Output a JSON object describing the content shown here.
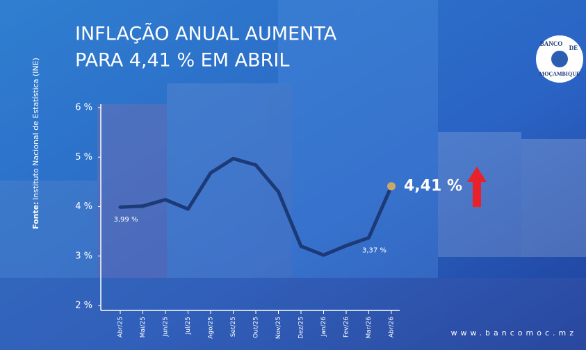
{
  "chart_data": {
    "type": "line",
    "title": [
      "INFLAÇÃO ANUAL AUMENTA",
      "PARA 4,41 % EM ABRIL"
    ],
    "categories": [
      "Abr/25",
      "Mai/25",
      "Jun/25",
      "Jul/25",
      "Ago/25",
      "Set/25",
      "Out/25",
      "Nov/25",
      "Dez/25",
      "Jan/26",
      "Fev/26",
      "Mar/26",
      "Abr/26"
    ],
    "values": [
      3.99,
      4.01,
      4.14,
      3.95,
      4.68,
      4.97,
      4.84,
      4.3,
      3.2,
      3.02,
      3.21,
      3.37,
      4.41
    ],
    "value_labels": [
      "3,99 %",
      null,
      null,
      null,
      null,
      null,
      null,
      null,
      null,
      null,
      null,
      "3,37 %",
      "4,41 %"
    ],
    "color": "#1c3a78",
    "marker_color": "#c9a86c",
    "ylim": [
      2,
      6
    ],
    "yticks": [
      {
        "value": 2,
        "label": "2 %"
      },
      {
        "value": 3,
        "label": "3 %"
      },
      {
        "value": 4,
        "label": "4 %"
      },
      {
        "value": 5,
        "label": "5 %"
      },
      {
        "value": 6,
        "label": "6 %"
      }
    ],
    "source_label": "Fonte:",
    "source": "Instituto Nacional de Estatística (INE)",
    "website": "www.bancomoc.mz",
    "logo": [
      "BANCO",
      "DE",
      "MOÇAMBIQUE"
    ]
  }
}
